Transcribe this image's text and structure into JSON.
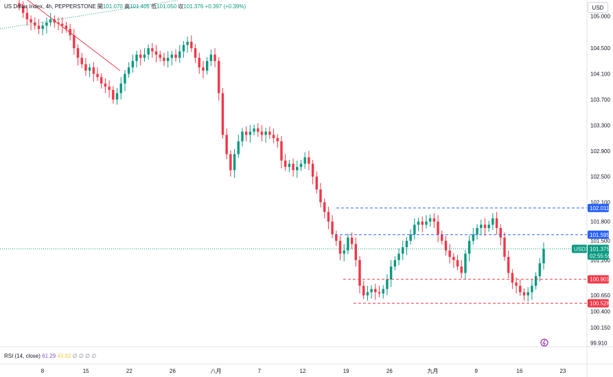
{
  "header": {
    "symbol": "US Dollar Index, 4h, PEPPERSTONE",
    "open_label": "開",
    "open": "101.070",
    "high_label": "高",
    "high": "101.405",
    "low_label": "低",
    "low": "101.050",
    "close_label": "収",
    "close": "101.376",
    "change": "+0.397 (+0.39%)"
  },
  "currency_button": "USD",
  "rsi": {
    "label": "RSI (14, close)",
    "value": "61.29",
    "ma": "43.82",
    "extra": "∅ ∅ ∅ ∅"
  },
  "colors": {
    "up": "#089981",
    "down": "#f23645",
    "blue": "#2962ff",
    "trend": "#f23645"
  },
  "chart_data": {
    "type": "candlestick",
    "price_axis": [
      "105.000",
      "104.500",
      "104.100",
      "103.700",
      "103.300",
      "102.900",
      "102.500",
      "102.100",
      "101.800",
      "101.500",
      "101.200",
      "100.650",
      "100.400",
      "100.150",
      "99.910"
    ],
    "time_axis": [
      "8",
      "15",
      "22",
      "26",
      "八月",
      "7",
      "12",
      "19",
      "26",
      "九月",
      "9",
      "16",
      "23"
    ],
    "price_range": [
      99.85,
      105.25
    ],
    "levels": [
      {
        "value": 102.011,
        "label": "102.011",
        "color": "#2962ff",
        "style": "dashed"
      },
      {
        "value": 101.595,
        "label": "101.595",
        "color": "#2962ff",
        "style": "dashed"
      },
      {
        "value": 100.901,
        "label": "100.901",
        "color": "#f23645",
        "style": "dashed"
      },
      {
        "value": 100.528,
        "label": "100.528",
        "color": "#f23645",
        "style": "dashed"
      }
    ],
    "current": {
      "symbol": "USDX",
      "value": "101.375",
      "countdown": "02:55:59",
      "color": "#089981"
    },
    "closes": [
      105.15,
      105.05,
      104.95,
      104.9,
      104.85,
      104.8,
      104.85,
      104.9,
      104.95,
      104.9,
      104.88,
      104.85,
      104.8,
      104.7,
      104.5,
      104.35,
      104.25,
      104.15,
      104.2,
      104.1,
      104.05,
      103.95,
      103.9,
      103.85,
      103.7,
      103.8,
      103.95,
      104.1,
      104.2,
      104.3,
      104.4,
      104.35,
      104.4,
      104.5,
      104.45,
      104.4,
      104.35,
      104.3,
      104.35,
      104.4,
      104.35,
      104.45,
      104.55,
      104.6,
      104.5,
      104.35,
      104.2,
      104.15,
      104.3,
      104.4,
      104.3,
      103.8,
      103.15,
      102.85,
      102.6,
      102.85,
      103.05,
      103.2,
      103.15,
      103.2,
      103.25,
      103.2,
      103.15,
      103.2,
      103.15,
      103.1,
      103.05,
      102.75,
      102.65,
      102.7,
      102.6,
      102.65,
      102.7,
      102.8,
      102.7,
      102.5,
      102.3,
      102.1,
      101.95,
      101.8,
      101.6,
      101.5,
      101.3,
      101.35,
      101.55,
      101.45,
      101.2,
      100.8,
      100.65,
      100.7,
      100.75,
      100.7,
      100.68,
      100.75,
      100.9,
      101.1,
      101.2,
      101.3,
      101.4,
      101.5,
      101.6,
      101.75,
      101.8,
      101.75,
      101.8,
      101.85,
      101.8,
      101.6,
      101.5,
      101.35,
      101.25,
      101.2,
      101.1,
      101.0,
      101.3,
      101.5,
      101.6,
      101.7,
      101.75,
      101.7,
      101.75,
      101.85,
      101.7,
      101.55,
      101.25,
      101.0,
      100.85,
      100.8,
      100.7,
      100.65,
      100.7,
      100.8,
      100.95,
      101.15,
      101.376
    ]
  }
}
